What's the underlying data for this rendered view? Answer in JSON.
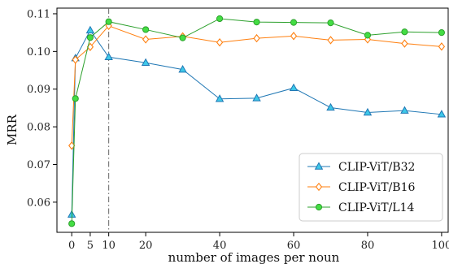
{
  "chart_data": {
    "type": "line",
    "xlabel": "number of images per noun",
    "ylabel": "MRR",
    "xlim": [
      -4,
      102
    ],
    "ylim": [
      0.052,
      0.1115
    ],
    "xticks": [
      0,
      5,
      10,
      20,
      40,
      60,
      80,
      100
    ],
    "yticks": [
      0.06,
      0.07,
      0.08,
      0.09,
      0.1,
      0.11
    ],
    "ytick_labels": [
      "0.06",
      "0.07",
      "0.08",
      "0.09",
      "0.10",
      "0.11"
    ],
    "reference_line_x": 10,
    "legend_position": "lower-right",
    "grid": false,
    "series": [
      {
        "name": "CLIP-ViT/B32",
        "color": "#1f77b4",
        "fill": "#3ec8e8",
        "marker": "triangle",
        "x": [
          0,
          1,
          5,
          10,
          20,
          30,
          40,
          50,
          60,
          70,
          80,
          90,
          100
        ],
        "y": [
          0.0567,
          0.0982,
          0.1056,
          0.0985,
          0.097,
          0.0952,
          0.0874,
          0.0876,
          0.0903,
          0.0851,
          0.0838,
          0.0843,
          0.0833
        ]
      },
      {
        "name": "CLIP-ViT/B16",
        "color": "#ff7f0e",
        "fill": "#ffffff",
        "marker": "diamond",
        "x": [
          0,
          1,
          5,
          10,
          20,
          30,
          40,
          50,
          60,
          70,
          80,
          90,
          100
        ],
        "y": [
          0.075,
          0.0978,
          0.1012,
          0.1068,
          0.1032,
          0.104,
          0.1024,
          0.1035,
          0.1041,
          0.103,
          0.1032,
          0.1021,
          0.1013
        ]
      },
      {
        "name": "CLIP-ViT/L14",
        "color": "#2ca02c",
        "fill": "#44dd44",
        "marker": "circle",
        "x": [
          0,
          1,
          5,
          10,
          20,
          30,
          40,
          50,
          60,
          70,
          80,
          90,
          100
        ],
        "y": [
          0.0543,
          0.0875,
          0.1037,
          0.1079,
          0.1058,
          0.1036,
          0.1087,
          0.1078,
          0.1077,
          0.1076,
          0.1043,
          0.1052,
          0.105
        ]
      }
    ]
  }
}
